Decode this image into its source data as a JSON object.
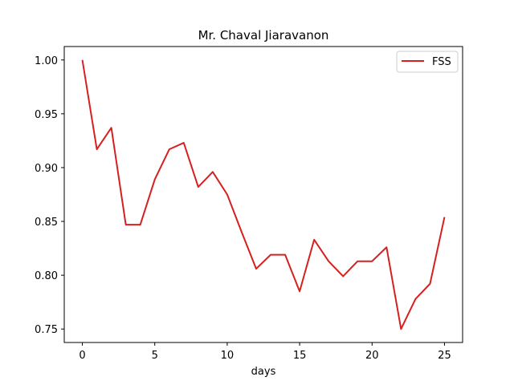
{
  "chart_data": {
    "type": "line",
    "title": "Mr. Chaval Jiaravanon",
    "xlabel": "days",
    "ylabel": "",
    "xlim": [
      -1.25,
      26.25
    ],
    "ylim": [
      0.7375,
      1.0125
    ],
    "xticks": [
      0,
      5,
      10,
      15,
      20,
      25
    ],
    "yticks": [
      0.75,
      0.8,
      0.85,
      0.9,
      0.95,
      1.0
    ],
    "xtick_labels": [
      "0",
      "5",
      "10",
      "15",
      "20",
      "25"
    ],
    "ytick_labels": [
      "0.75",
      "0.80",
      "0.85",
      "0.90",
      "0.95",
      "1.00"
    ],
    "grid": false,
    "legend_position": "top-right",
    "series": [
      {
        "name": "FSS",
        "color": "#d62020",
        "x": [
          0,
          1,
          2,
          3,
          4,
          5,
          6,
          7,
          8,
          9,
          10,
          11,
          12,
          13,
          14,
          15,
          16,
          17,
          18,
          19,
          20,
          21,
          22,
          23,
          24,
          25
        ],
        "y": [
          1.0,
          0.917,
          0.937,
          0.847,
          0.847,
          0.889,
          0.917,
          0.923,
          0.882,
          0.896,
          0.875,
          0.84,
          0.806,
          0.819,
          0.819,
          0.785,
          0.833,
          0.813,
          0.799,
          0.813,
          0.813,
          0.826,
          0.75,
          0.778,
          0.792,
          0.854
        ]
      }
    ]
  }
}
